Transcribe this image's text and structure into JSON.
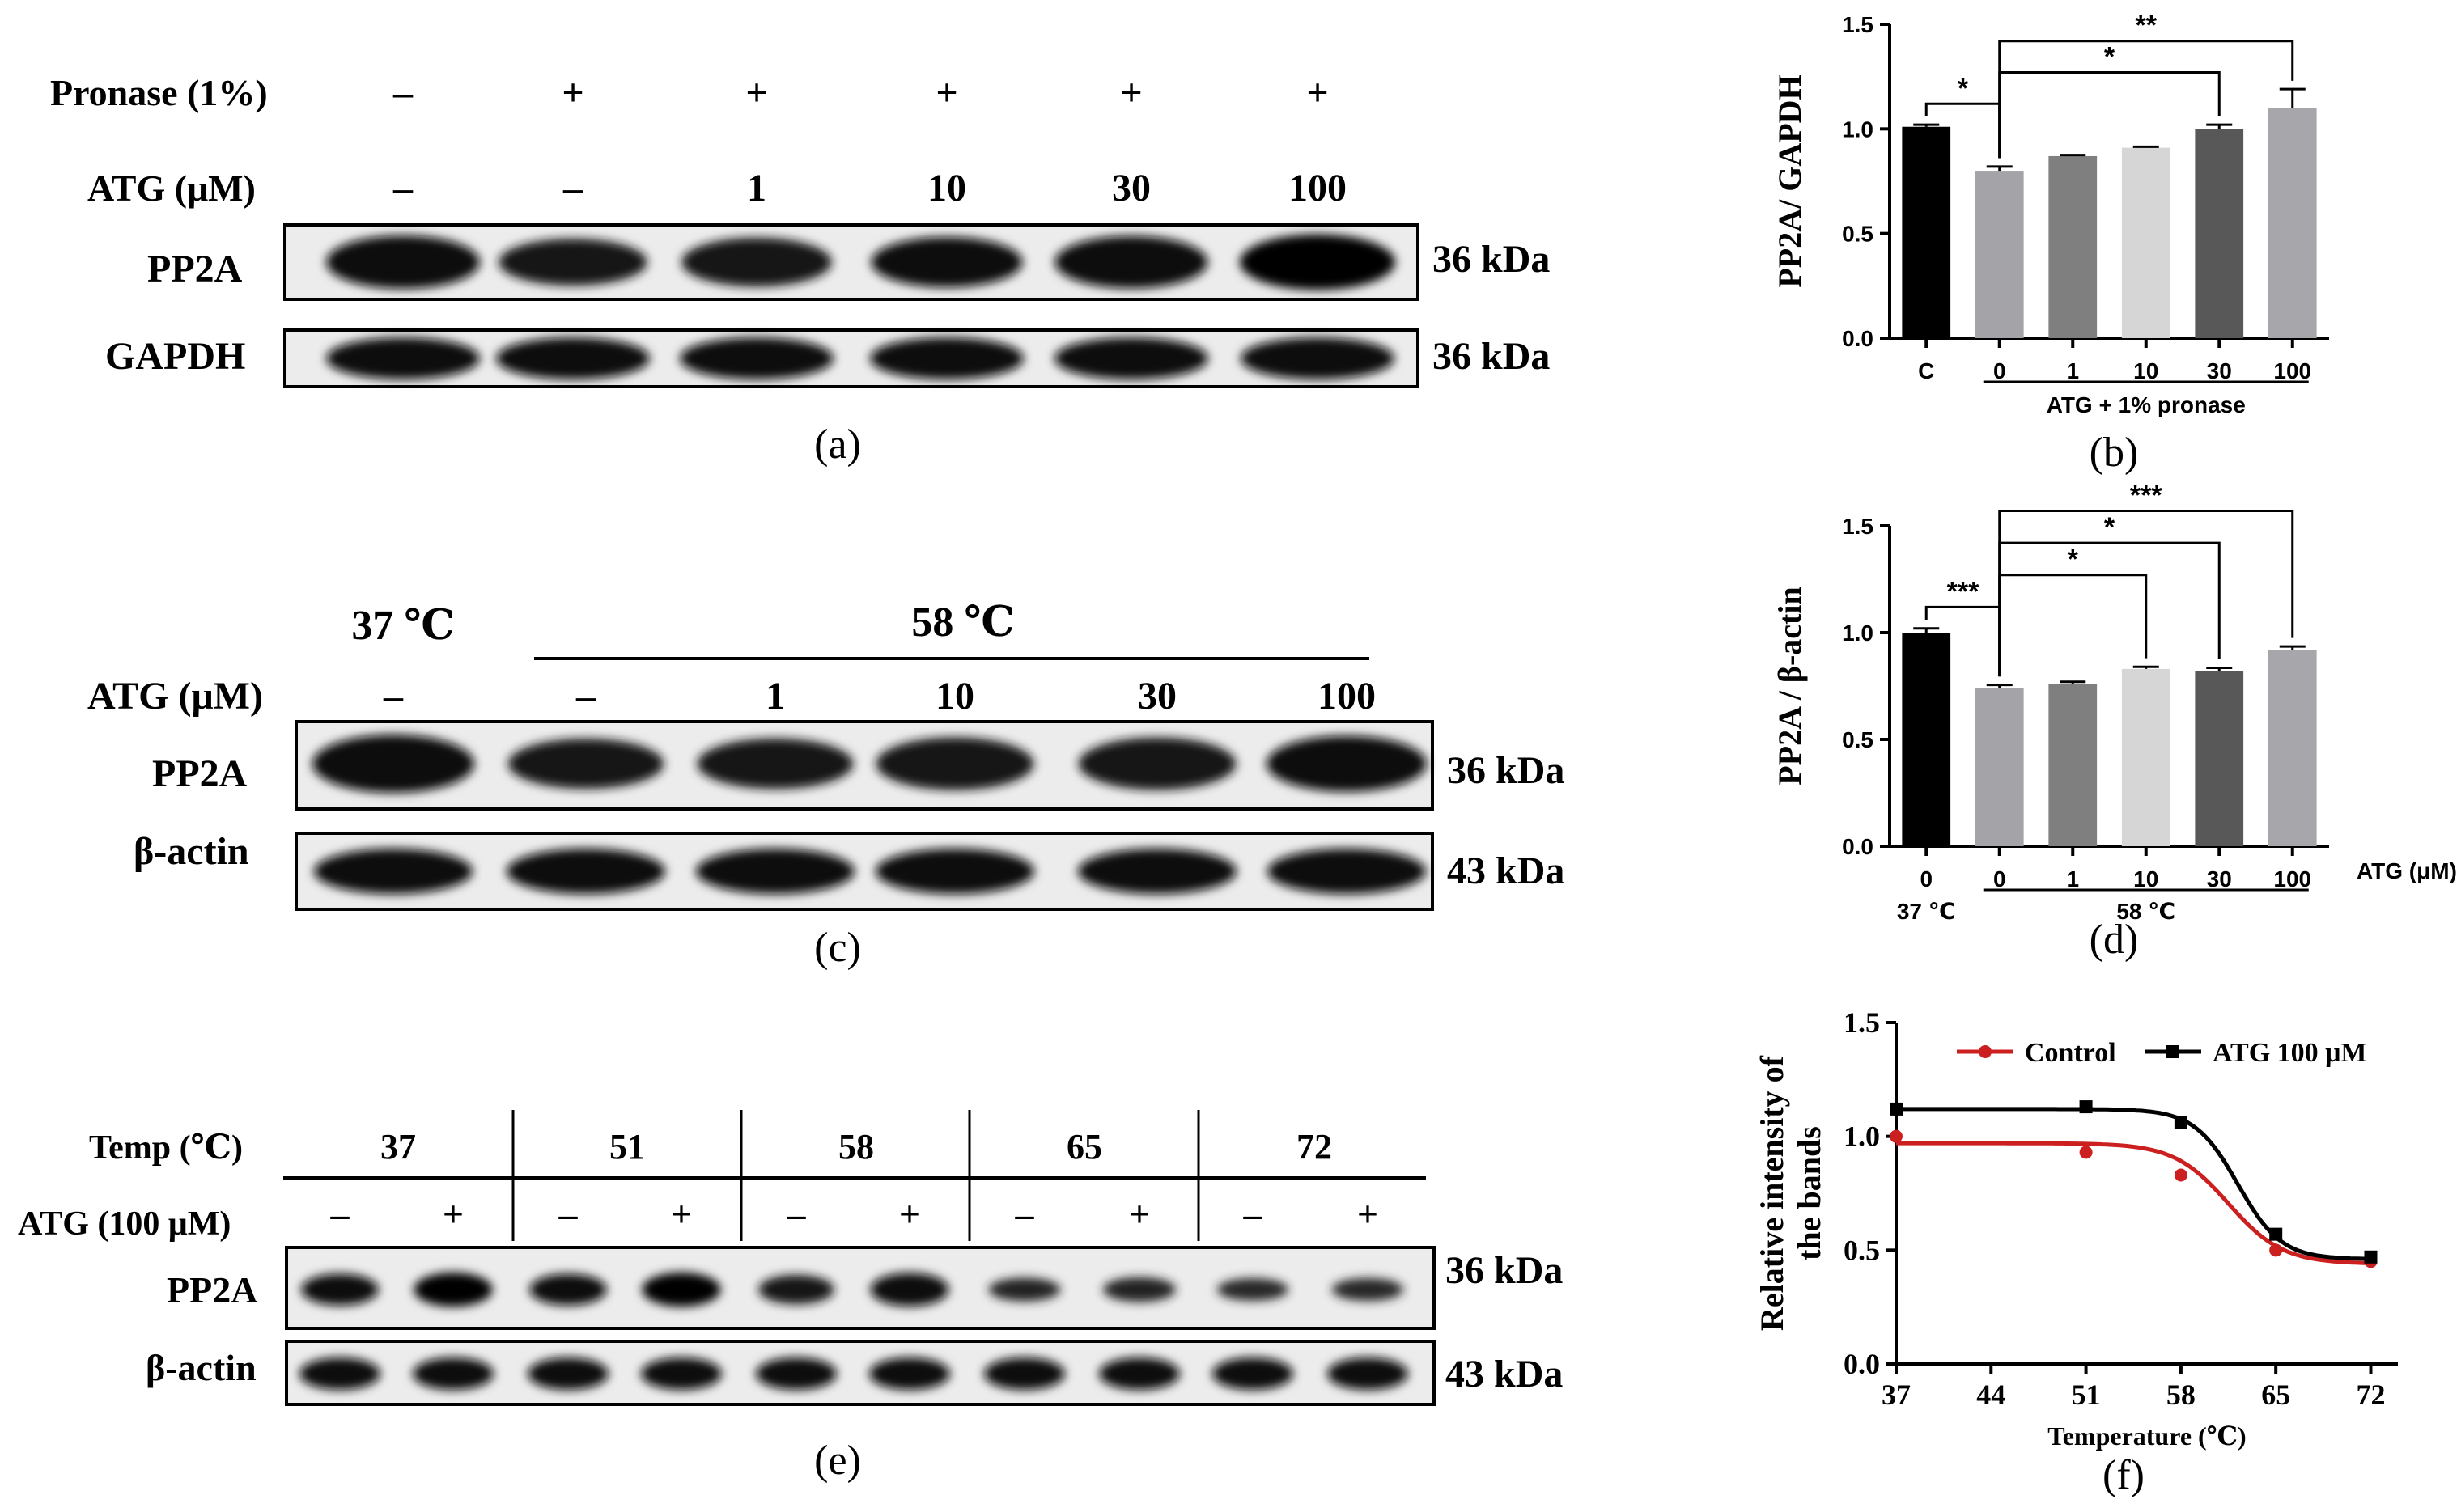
{
  "panel_labels": {
    "a": "(a)",
    "b": "(b)",
    "c": "(c)",
    "d": "(d)",
    "e": "(e)",
    "f": "(f)"
  },
  "blot_a": {
    "row1_label": "Pronase (1%)",
    "row1_values": [
      "–",
      "+",
      "+",
      "+",
      "+",
      "+"
    ],
    "row2_label": "ATG (μM)",
    "row2_values": [
      "–",
      "–",
      "1",
      "10",
      "30",
      "100"
    ],
    "bands": [
      {
        "label": "PP2A",
        "size": "36 kDa",
        "intensity": [
          1.0,
          0.78,
          0.85,
          0.9,
          0.97,
          1.08
        ]
      },
      {
        "label": "GAPDH",
        "size": "36 kDa",
        "intensity": [
          1.0,
          1.0,
          1.0,
          1.0,
          1.0,
          1.0
        ]
      }
    ]
  },
  "blot_c": {
    "temp_left": "37 ℃",
    "temp_right": "58 ℃",
    "row_label": "ATG (μM)",
    "row_values": [
      "–",
      "–",
      "1",
      "10",
      "30",
      "100"
    ],
    "bands": [
      {
        "label": "PP2A",
        "size": "36 kDa",
        "intensity": [
          1.0,
          0.75,
          0.76,
          0.83,
          0.82,
          0.93
        ]
      },
      {
        "label": "β-actin",
        "size": "43 kDa",
        "intensity": [
          1.0,
          1.0,
          1.0,
          1.0,
          1.0,
          1.0
        ]
      }
    ]
  },
  "blot_e": {
    "temp_label": "Temp (℃)",
    "temps": [
      "37",
      "51",
      "58",
      "65",
      "72"
    ],
    "atg_label": "ATG (100 μM)",
    "atg_values": [
      "–",
      "+",
      "–",
      "+",
      "–",
      "+",
      "–",
      "+",
      "–",
      "+"
    ],
    "bands": [
      {
        "label": "PP2A",
        "size": "36 kDa",
        "intensity": [
          0.97,
          1.12,
          0.96,
          1.13,
          0.83,
          1.06,
          0.5,
          0.57,
          0.45,
          0.47
        ]
      },
      {
        "label": "β-actin",
        "size": "43 kDa",
        "intensity": [
          1,
          1,
          1,
          1,
          1,
          1,
          1,
          1,
          1,
          1
        ]
      }
    ]
  },
  "chart_data": [
    {
      "type": "bar",
      "panel": "b",
      "ylabel": "PP2A/ GAPDH",
      "ylim": [
        0,
        1.5
      ],
      "yticks": [
        "0.0",
        "0.5",
        "1.0",
        "1.5"
      ],
      "categories": [
        "C",
        "0",
        "1",
        "10",
        "30",
        "100"
      ],
      "values": [
        1.01,
        0.8,
        0.87,
        0.91,
        1.0,
        1.1
      ],
      "errors": [
        0.01,
        0.02,
        0.005,
        0.005,
        0.02,
        0.09
      ],
      "colors": [
        "#000000",
        "#a3a3a8",
        "#7f7f7f",
        "#d6d6d6",
        "#585858",
        "#a7a7ab"
      ],
      "group_label": "ATG + 1% pronase",
      "significance": [
        {
          "from": 0,
          "to": 1,
          "label": "*"
        },
        {
          "from": 1,
          "to": 4,
          "label": "*"
        },
        {
          "from": 1,
          "to": 5,
          "label": "**"
        }
      ]
    },
    {
      "type": "bar",
      "panel": "d",
      "ylabel": "PP2A / β-actin",
      "ylim": [
        0,
        1.5
      ],
      "yticks": [
        "0.0",
        "0.5",
        "1.0",
        "1.5"
      ],
      "categories": [
        "0",
        "0",
        "1",
        "10",
        "30",
        "100"
      ],
      "values": [
        1.0,
        0.74,
        0.76,
        0.83,
        0.82,
        0.92
      ],
      "errors": [
        0.02,
        0.015,
        0.01,
        0.01,
        0.015,
        0.015
      ],
      "colors": [
        "#000000",
        "#a3a3a8",
        "#7f7f7f",
        "#d6d6d6",
        "#585858",
        "#a7a7ab"
      ],
      "xunit": "ATG (μM)",
      "group_left": "37 ℃",
      "group_right": "58 ℃",
      "significance": [
        {
          "from": 0,
          "to": 1,
          "label": "***"
        },
        {
          "from": 1,
          "to": 3,
          "label": "*"
        },
        {
          "from": 1,
          "to": 4,
          "label": "*"
        },
        {
          "from": 1,
          "to": 5,
          "label": "***"
        }
      ]
    },
    {
      "type": "line",
      "panel": "f",
      "xlabel": "Temperature (℃)",
      "ylabel": "Relative intensity of the bands",
      "ylabel_lines": [
        "Relative intensity of",
        "the bands"
      ],
      "xlim": [
        37,
        74
      ],
      "ylim": [
        0,
        1.5
      ],
      "xticks": [
        "37",
        "44",
        "51",
        "58",
        "65",
        "72"
      ],
      "yticks": [
        "0.0",
        "0.5",
        "1.0",
        "1.5"
      ],
      "legend_position": "top",
      "series": [
        {
          "name": "Control",
          "color": "#cc1f1f",
          "marker": "circle",
          "x": [
            37,
            51,
            58,
            65,
            72
          ],
          "y": [
            1.0,
            0.93,
            0.83,
            0.5,
            0.45
          ],
          "fit": {
            "top": 0.97,
            "bottom": 0.44,
            "tm": 61.5,
            "slope": 2.0
          }
        },
        {
          "name": "ATG 100 μM",
          "color": "#000000",
          "marker": "square",
          "x": [
            37,
            51,
            58,
            65,
            72
          ],
          "y": [
            1.12,
            1.13,
            1.06,
            0.57,
            0.47
          ],
          "fit": {
            "top": 1.12,
            "bottom": 0.46,
            "tm": 62.2,
            "slope": 1.6
          }
        }
      ]
    }
  ]
}
